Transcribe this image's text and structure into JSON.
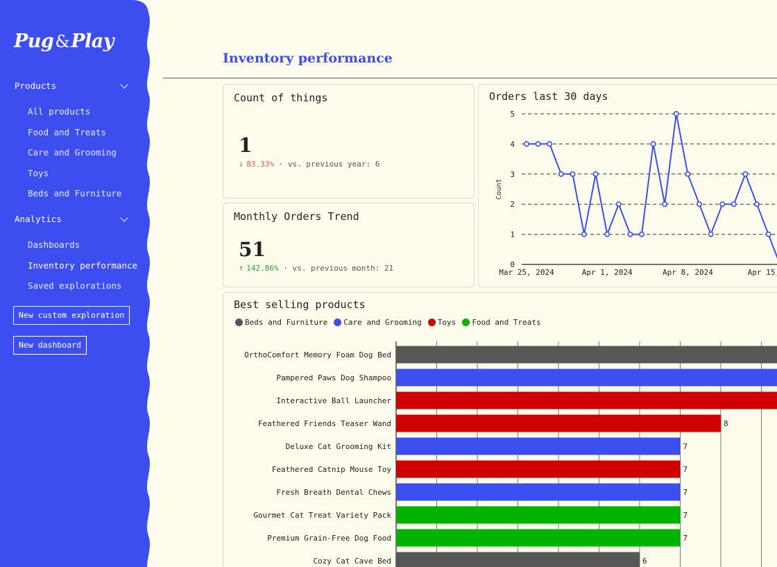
{
  "brand": {
    "name_left": "Pug",
    "amp": "&",
    "name_right": "Play"
  },
  "colors": {
    "accent": "#3d4ef0",
    "background": "#fdfced",
    "gray": "#575757",
    "red": "#d00000",
    "green": "#00b300"
  },
  "sidebar": {
    "sections": [
      {
        "label": "Products",
        "items": [
          "All products",
          "Food and Treats",
          "Care and Grooming",
          "Toys",
          "Beds and Furniture"
        ]
      },
      {
        "label": "Analytics",
        "items": [
          "Dashboards",
          "Inventory performance",
          "Saved explorations"
        ]
      }
    ],
    "active_item": "Inventory performance",
    "buttons": {
      "new_exploration": "New custom exploration",
      "new_dashboard": "New dashboard"
    }
  },
  "header": {
    "title": "Inventory performance"
  },
  "kpi_count": {
    "title": "Count of things",
    "value": "1",
    "delta": "83.33%",
    "direction": "down",
    "comparison": "vs. previous year: 6"
  },
  "kpi_monthly": {
    "title": "Monthly Orders Trend",
    "value": "51",
    "delta": "142.86%",
    "direction": "up",
    "comparison": "vs. previous month: 21"
  },
  "orders_chart": {
    "title": "Orders last 30 days",
    "chart_data": {
      "type": "line",
      "ylabel": "Count",
      "ylim": [
        0,
        5
      ],
      "yticks": [
        "0",
        "1",
        "2",
        "3",
        "4",
        "5"
      ],
      "xticks": [
        "Mar 25, 2024",
        "Apr 1, 2024",
        "Apr 8, 2024",
        "Apr 15,"
      ],
      "grid": "horizontal dashed",
      "series": [
        {
          "color": "#3d4ef0",
          "x": [
            "2024-03-25",
            "2024-03-26",
            "2024-03-27",
            "2024-03-28",
            "2024-03-29",
            "2024-03-30",
            "2024-03-31",
            "2024-04-01",
            "2024-04-02",
            "2024-04-03",
            "2024-04-04",
            "2024-04-05",
            "2024-04-06",
            "2024-04-07",
            "2024-04-08",
            "2024-04-09",
            "2024-04-10",
            "2024-04-11",
            "2024-04-12",
            "2024-04-13",
            "2024-04-14",
            "2024-04-15",
            "2024-04-16"
          ],
          "values": [
            4,
            4,
            4,
            3,
            3,
            1,
            3,
            1,
            2,
            1,
            1,
            4,
            2,
            5,
            3,
            2,
            1,
            2,
            2,
            3,
            2,
            1,
            0
          ]
        }
      ]
    }
  },
  "best_sellers": {
    "title": "Best selling products",
    "legend": [
      {
        "label": "Beds and Furniture",
        "color": "#575757"
      },
      {
        "label": "Care and Grooming",
        "color": "#3d4ef0"
      },
      {
        "label": "Toys",
        "color": "#d00000"
      },
      {
        "label": "Food and Treats",
        "color": "#00b300"
      }
    ],
    "chart_data": {
      "type": "bar",
      "orientation": "horizontal",
      "categories": [
        "OrthoComfort Memory Foam Dog Bed",
        "Pampered Paws Dog Shampoo",
        "Interactive Ball Launcher",
        "Feathered Friends Teaser Wand",
        "Deluxe Cat Grooming Kit",
        "Feathered Catnip Mouse Toy",
        "Fresh Breath Dental Chews",
        "Gourmet Cat Treat Variety Pack",
        "Premium Grain-Free Dog Food",
        "Cozy Cat Cave Bed"
      ],
      "values": [
        10,
        10,
        10,
        8,
        7,
        7,
        7,
        7,
        7,
        6
      ],
      "labels": [
        "",
        "",
        "",
        "8",
        "7",
        "7",
        "7",
        "7",
        "7",
        "6"
      ],
      "colors": [
        "#575757",
        "#3d4ef0",
        "#d00000",
        "#d00000",
        "#3d4ef0",
        "#d00000",
        "#3d4ef0",
        "#00b300",
        "#00b300",
        "#575757"
      ],
      "grid": "vertical"
    }
  }
}
